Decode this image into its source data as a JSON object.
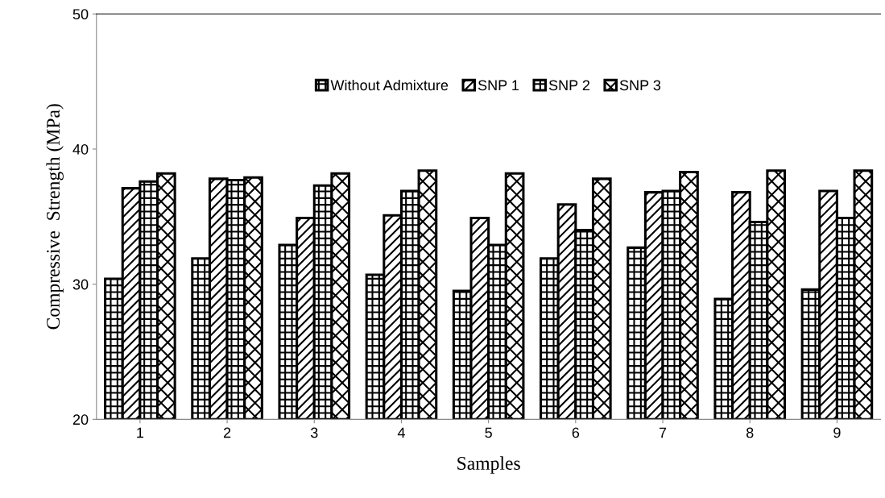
{
  "chart_data": {
    "type": "bar",
    "xlabel": "Samples",
    "ylabel": "Compressive  Strength (MPa)",
    "categories": [
      "1",
      "2",
      "3",
      "4",
      "5",
      "6",
      "7",
      "8",
      "9"
    ],
    "series": [
      {
        "name": "Without Admixture",
        "color": "#000000",
        "values": [
          30.4,
          31.9,
          32.9,
          30.7,
          29.5,
          31.9,
          32.7,
          28.9,
          29.6
        ]
      },
      {
        "name": "SNP 1",
        "color": "#000000",
        "values": [
          37.1,
          37.8,
          34.9,
          35.1,
          34.9,
          35.9,
          36.8,
          36.8,
          36.9
        ]
      },
      {
        "name": "SNP 2",
        "color": "#000000",
        "values": [
          37.6,
          37.7,
          37.3,
          36.9,
          32.9,
          34.0,
          36.9,
          34.6,
          34.9
        ]
      },
      {
        "name": "SNP 3",
        "color": "#000000",
        "values": [
          38.2,
          37.9,
          38.2,
          38.4,
          38.2,
          37.8,
          38.3,
          38.4,
          38.4
        ]
      }
    ],
    "ylim": [
      20,
      50
    ],
    "yticks": [
      20,
      30,
      40,
      50
    ],
    "grid": false,
    "legend": "top"
  }
}
